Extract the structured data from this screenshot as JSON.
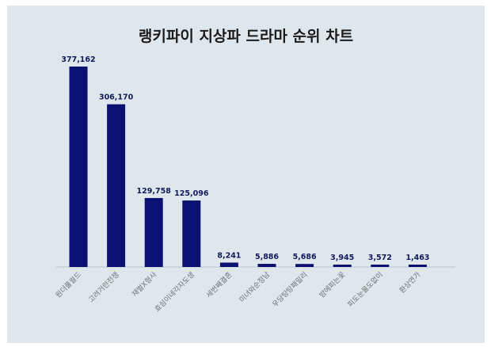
{
  "chart_data": {
    "type": "bar",
    "title": "랭키파이 지상파 드라마 순위 차트",
    "categories": [
      "원더풀월드",
      "고려거란전쟁",
      "재벌X형사",
      "효심이네각자도생",
      "세번째결혼",
      "미녀와순정남",
      "우당탕탕패밀리",
      "밤에피는꽃",
      "피도눈물도없이",
      "환상연가"
    ],
    "values": [
      377162,
      306170,
      129758,
      125096,
      8241,
      5886,
      5686,
      3945,
      3572,
      1463
    ],
    "value_labels": [
      "377,162",
      "306,170",
      "129,758",
      "125,096",
      "8,241",
      "5,886",
      "5,686",
      "3,945",
      "3,572",
      "1,463"
    ],
    "ylim": [
      0,
      377162
    ],
    "grid": false,
    "legend": "none",
    "colors": {
      "bar": "#0a1172",
      "background": "#dfe7ec"
    }
  }
}
